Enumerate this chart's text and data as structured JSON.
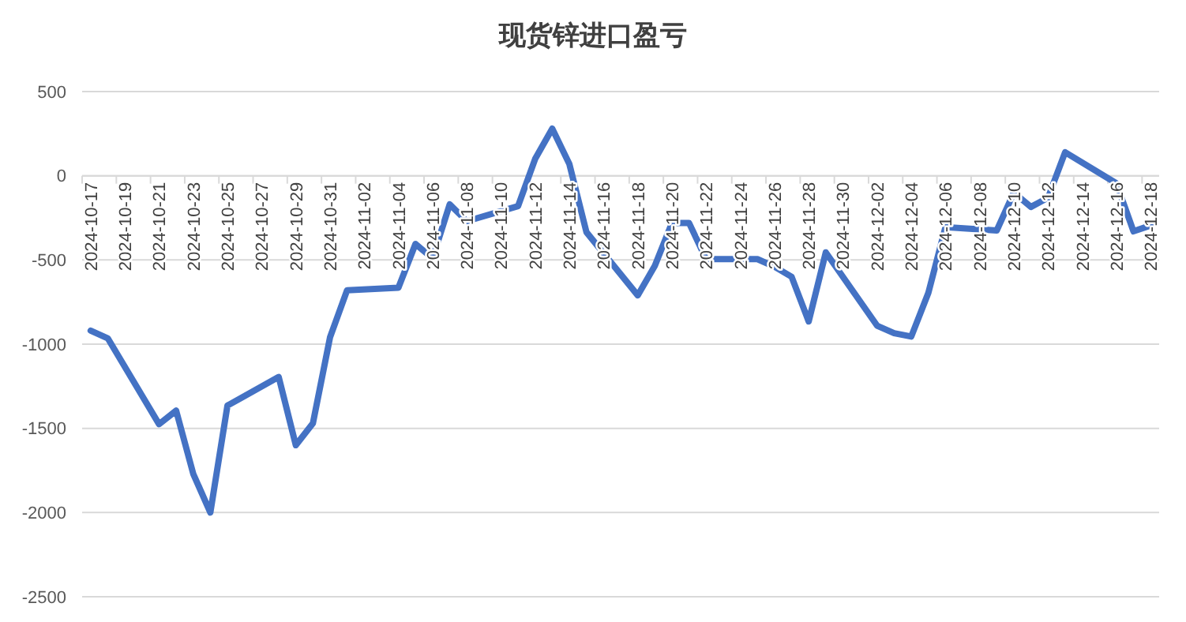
{
  "chart_data": {
    "type": "line",
    "title": "现货锌进口盈亏",
    "x": [
      "2024-10-17",
      "2024-10-18",
      "2024-10-21",
      "2024-10-22",
      "2024-10-23",
      "2024-10-24",
      "2024-10-25",
      "2024-10-28",
      "2024-10-29",
      "2024-10-30",
      "2024-10-31",
      "2024-11-01",
      "2024-11-04",
      "2024-11-05",
      "2024-11-06",
      "2024-11-07",
      "2024-11-08",
      "2024-11-11",
      "2024-11-12",
      "2024-11-13",
      "2024-11-14",
      "2024-11-15",
      "2024-11-18",
      "2024-11-19",
      "2024-11-20",
      "2024-11-21",
      "2024-11-22",
      "2024-11-25",
      "2024-11-26",
      "2024-11-27",
      "2024-11-28",
      "2024-11-29",
      "2024-12-02",
      "2024-12-03",
      "2024-12-04",
      "2024-12-05",
      "2024-12-06",
      "2024-12-09",
      "2024-12-10",
      "2024-12-11",
      "2024-12-12",
      "2024-12-13",
      "2024-12-16",
      "2024-12-17",
      "2024-12-18"
    ],
    "series": [
      {
        "color": "#4472c4",
        "values": [
          -920,
          -965,
          -1475,
          -1395,
          -1770,
          -2000,
          -1365,
          -1195,
          -1600,
          -1470,
          -960,
          -680,
          -665,
          -405,
          -490,
          -170,
          -270,
          -180,
          100,
          280,
          70,
          -335,
          -710,
          -535,
          -280,
          -280,
          -495,
          -495,
          -540,
          -600,
          -865,
          -455,
          -890,
          -935,
          -955,
          -695,
          -305,
          -325,
          -100,
          -185,
          -130,
          140,
          -45,
          -330,
          -295
        ]
      }
    ],
    "xlim": [
      "2024-10-16T12:00",
      "2024-12-18T12:00"
    ],
    "xticks": [
      "2024-10-17",
      "2024-10-19",
      "2024-10-21",
      "2024-10-23",
      "2024-10-25",
      "2024-10-27",
      "2024-10-29",
      "2024-10-31",
      "2024-11-02",
      "2024-11-04",
      "2024-11-06",
      "2024-11-08",
      "2024-11-10",
      "2024-11-12",
      "2024-11-14",
      "2024-11-16",
      "2024-11-18",
      "2024-11-20",
      "2024-11-22",
      "2024-11-24",
      "2024-11-26",
      "2024-11-28",
      "2024-11-30",
      "2024-12-02",
      "2024-12-04",
      "2024-12-06",
      "2024-12-08",
      "2024-12-10",
      "2024-12-12",
      "2024-12-14",
      "2024-12-16",
      "2024-12-18"
    ],
    "ylim": [
      -2500,
      500
    ],
    "yticks": [
      -2500,
      -2000,
      -1500,
      -1000,
      -500,
      0,
      500
    ],
    "grid": "y",
    "marker": "none",
    "line_style": "solid"
  }
}
